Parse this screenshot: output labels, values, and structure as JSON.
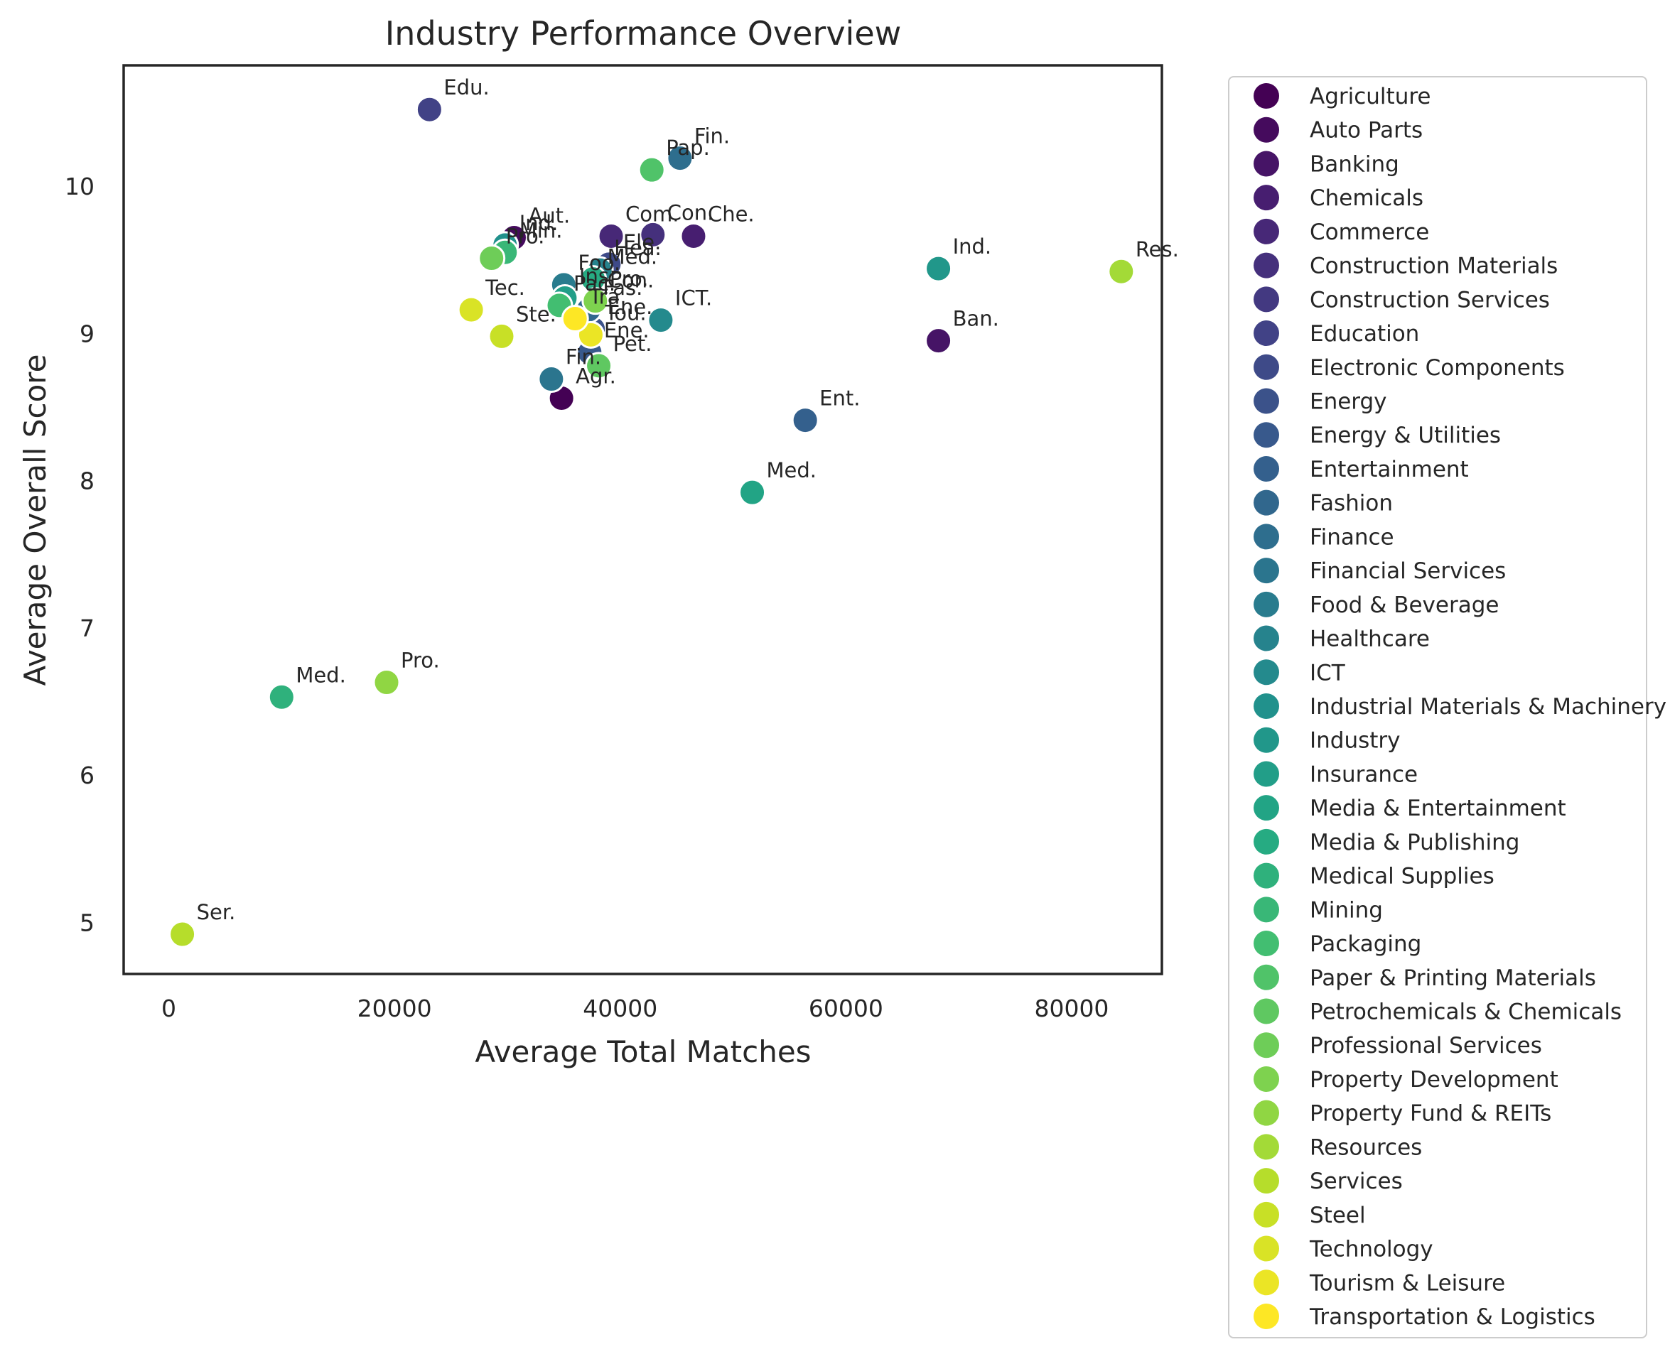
{
  "chart_data": {
    "type": "scatter",
    "title": "Industry Performance Overview",
    "xlabel": "Average Total Matches",
    "ylabel": "Average Overall Score",
    "xlim": [
      -4000,
      88000
    ],
    "ylim": [
      4.65,
      10.82
    ],
    "xticks": [
      0,
      20000,
      40000,
      60000,
      80000
    ],
    "yticks": [
      5,
      6,
      7,
      8,
      9,
      10
    ],
    "grid": false,
    "legend_position": "outside-right",
    "colormap": "viridis",
    "points": [
      {
        "name": "Agriculture",
        "x": 34800,
        "y": 8.56,
        "label": "Agr."
      },
      {
        "name": "Auto Parts",
        "x": 30600,
        "y": 9.65,
        "label": "Aut."
      },
      {
        "name": "Banking",
        "x": 68200,
        "y": 8.95,
        "label": "Ban."
      },
      {
        "name": "Chemicals",
        "x": 46500,
        "y": 9.66,
        "label": "Che."
      },
      {
        "name": "Commerce",
        "x": 39200,
        "y": 9.66,
        "label": "Com."
      },
      {
        "name": "Construction Materials",
        "x": 42900,
        "y": 9.67,
        "label": "Con."
      },
      {
        "name": "Construction Services",
        "x": 37600,
        "y": 9.21,
        "label": "Con."
      },
      {
        "name": "Education",
        "x": 23100,
        "y": 10.52,
        "label": "Edu."
      },
      {
        "name": "Electronic Components",
        "x": 39000,
        "y": 9.47,
        "label": "Ele."
      },
      {
        "name": "Energy",
        "x": 37600,
        "y": 9.03,
        "label": "Ene."
      },
      {
        "name": "Energy & Utilities",
        "x": 37300,
        "y": 8.87,
        "label": "Ene."
      },
      {
        "name": "Entertainment",
        "x": 56400,
        "y": 8.41,
        "label": "Ent."
      },
      {
        "name": "Fashion",
        "x": 37200,
        "y": 9.16,
        "label": "Fas."
      },
      {
        "name": "Finance",
        "x": 45300,
        "y": 10.19,
        "label": "Fin."
      },
      {
        "name": "Financial Services",
        "x": 33900,
        "y": 8.69,
        "label": "Fin."
      },
      {
        "name": "Food & Beverage",
        "x": 35000,
        "y": 9.33,
        "label": "Foo."
      },
      {
        "name": "Healthcare",
        "x": 38200,
        "y": 9.43,
        "label": "Hea."
      },
      {
        "name": "ICT",
        "x": 43600,
        "y": 9.09,
        "label": "ICT."
      },
      {
        "name": "Industrial Materials & Machinery",
        "x": 29800,
        "y": 9.6,
        "label": "Ind."
      },
      {
        "name": "Industry",
        "x": 68200,
        "y": 9.44,
        "label": "Ind."
      },
      {
        "name": "Insurance",
        "x": 35100,
        "y": 9.24,
        "label": "Ins."
      },
      {
        "name": "Media & Entertainment",
        "x": 51700,
        "y": 7.92,
        "label": "Med."
      },
      {
        "name": "Media & Publishing",
        "x": 37600,
        "y": 9.37,
        "label": "Med."
      },
      {
        "name": "Medical Supplies",
        "x": 10000,
        "y": 6.53,
        "label": "Med."
      },
      {
        "name": "Mining",
        "x": 29800,
        "y": 9.55,
        "label": "Min."
      },
      {
        "name": "Packaging",
        "x": 34600,
        "y": 9.19,
        "label": "Pac."
      },
      {
        "name": "Paper & Printing Materials",
        "x": 42800,
        "y": 10.11,
        "label": "Pap."
      },
      {
        "name": "Petrochemicals & Chemicals",
        "x": 38100,
        "y": 8.78,
        "label": "Pet."
      },
      {
        "name": "Professional Services",
        "x": 28600,
        "y": 9.51,
        "label": "Pro."
      },
      {
        "name": "Property Development",
        "x": 37800,
        "y": 9.22,
        "label": "Pro."
      },
      {
        "name": "Property Fund & REITs",
        "x": 19300,
        "y": 6.63,
        "label": "Pro."
      },
      {
        "name": "Resources",
        "x": 84400,
        "y": 9.42,
        "label": "Res."
      },
      {
        "name": "Services",
        "x": 1200,
        "y": 4.92,
        "label": "Ser."
      },
      {
        "name": "Steel",
        "x": 29500,
        "y": 8.98,
        "label": "Ste."
      },
      {
        "name": "Technology",
        "x": 26800,
        "y": 9.16,
        "label": "Tec."
      },
      {
        "name": "Tourism & Leisure",
        "x": 37400,
        "y": 8.99,
        "label": "Tou."
      },
      {
        "name": "Transportation & Logistics",
        "x": 36000,
        "y": 9.1,
        "label": "Tra."
      }
    ]
  }
}
